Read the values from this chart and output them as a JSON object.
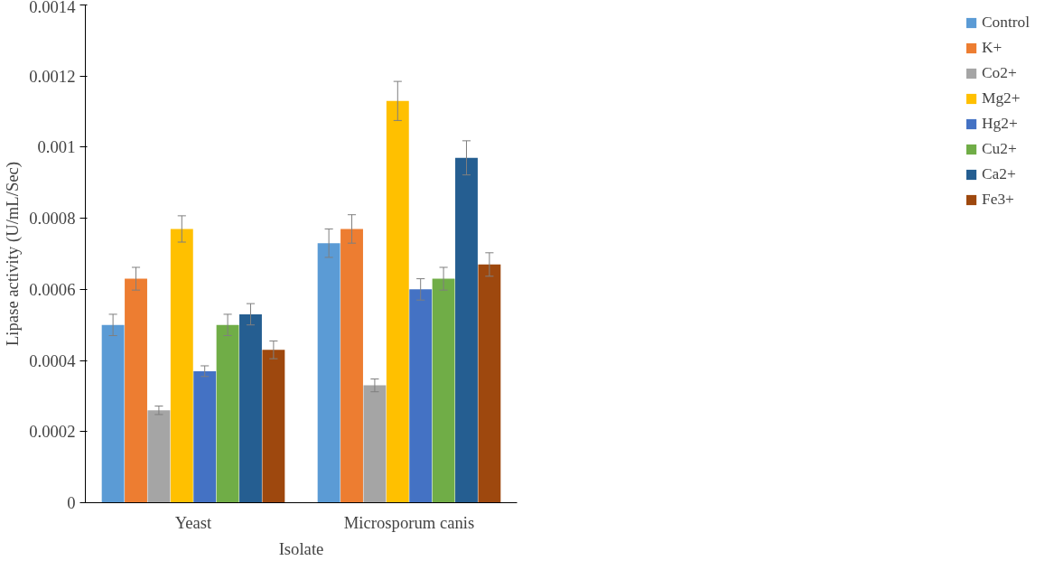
{
  "chart_data": {
    "type": "bar",
    "xlabel": "Isolate",
    "ylabel": "Lipase activity (U/mL/Sec)",
    "categories": [
      "Yeast",
      "Microsporum canis"
    ],
    "series": [
      {
        "name": "Control",
        "color": "#5b9bd5",
        "values": [
          0.0005,
          0.00073
        ],
        "errors": [
          3e-05,
          4e-05
        ]
      },
      {
        "name": "K+",
        "color": "#ed7d31",
        "values": [
          0.00063,
          0.00077
        ],
        "errors": [
          3.2e-05,
          4e-05
        ]
      },
      {
        "name": "Co2+",
        "color": "#a5a5a5",
        "values": [
          0.00026,
          0.00033
        ],
        "errors": [
          1.2e-05,
          1.8e-05
        ]
      },
      {
        "name": "Mg2+",
        "color": "#ffc000",
        "values": [
          0.00077,
          0.00113
        ],
        "errors": [
          3.7e-05,
          5.5e-05
        ]
      },
      {
        "name": "Hg2+",
        "color": "#4472c4",
        "values": [
          0.00037,
          0.0006
        ],
        "errors": [
          1.5e-05,
          3e-05
        ]
      },
      {
        "name": "Cu2+",
        "color": "#70ad47",
        "values": [
          0.0005,
          0.00063
        ],
        "errors": [
          3e-05,
          3.2e-05
        ]
      },
      {
        "name": "Ca2+",
        "color": "#255e91",
        "values": [
          0.00053,
          0.00097
        ],
        "errors": [
          3e-05,
          4.8e-05
        ]
      },
      {
        "name": "Fe3+",
        "color": "#9e480e",
        "values": [
          0.00043,
          0.00067
        ],
        "errors": [
          2.5e-05,
          3.3e-05
        ]
      }
    ],
    "ylim": [
      0,
      0.0014
    ],
    "yticks": [
      0,
      0.0002,
      0.0004,
      0.0006,
      0.0008,
      0.001,
      0.0012,
      0.0014
    ],
    "grid": false,
    "legend": "right"
  }
}
